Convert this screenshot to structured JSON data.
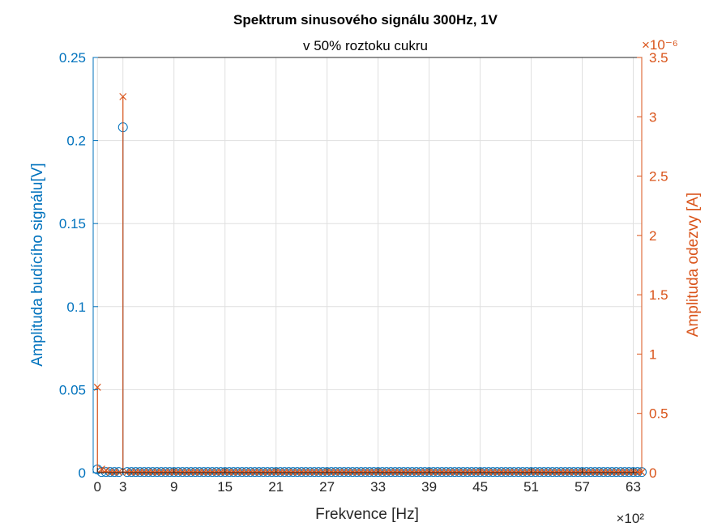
{
  "chart_data": {
    "type": "stem",
    "title": "Spektrum sinusového signálu 300Hz, 1V",
    "subtitle": "v 50% roztoku cukru",
    "xlabel": "Frekvence [Hz]",
    "x_exponent": "×10²",
    "xlim": [
      -0.5,
      64
    ],
    "x_ticks": [
      "0",
      "3",
      "9",
      "15",
      "21",
      "27",
      "33",
      "39",
      "45",
      "51",
      "57",
      "63"
    ],
    "x_tick_values": [
      0,
      3,
      9,
      15,
      21,
      27,
      33,
      39,
      45,
      51,
      57,
      63
    ],
    "grid": true,
    "left_axis": {
      "label": "Amplituda budícího signálu[V]",
      "ylim": [
        0,
        0.25
      ],
      "ticks": [
        "0",
        "0.05",
        "0.1",
        "0.15",
        "0.2",
        "0.25"
      ],
      "tick_values": [
        0,
        0.05,
        0.1,
        0.15,
        0.2,
        0.25
      ],
      "color": "#0072BD"
    },
    "right_axis": {
      "label": "Amplituda odezvy [A]",
      "exponent": "×10⁻⁶",
      "ylim": [
        0,
        3.5
      ],
      "ticks": [
        "0",
        "0.5",
        "1",
        "1.5",
        "2",
        "2.5",
        "3",
        "3.5"
      ],
      "tick_values": [
        0,
        0.5,
        1,
        1.5,
        2,
        2.5,
        3,
        3.5
      ],
      "color": "#D95319"
    },
    "series": [
      {
        "axis": "left",
        "marker": "circle",
        "color": "#0072BD",
        "points": [
          [
            0,
            0.002
          ],
          [
            3,
            0.208
          ]
        ],
        "baseline_from": 0,
        "baseline_to": 64,
        "baseline_step": 0.5,
        "baseline_value": 0.0004
      },
      {
        "axis": "right",
        "marker": "cross",
        "color": "#D95319",
        "points": [
          [
            0,
            0.72
          ],
          [
            0.5,
            0.03
          ],
          [
            1,
            0.02
          ],
          [
            3,
            3.17
          ]
        ],
        "baseline_from": 0,
        "baseline_to": 64,
        "baseline_step": 0.5,
        "baseline_value": 0.005
      }
    ]
  }
}
